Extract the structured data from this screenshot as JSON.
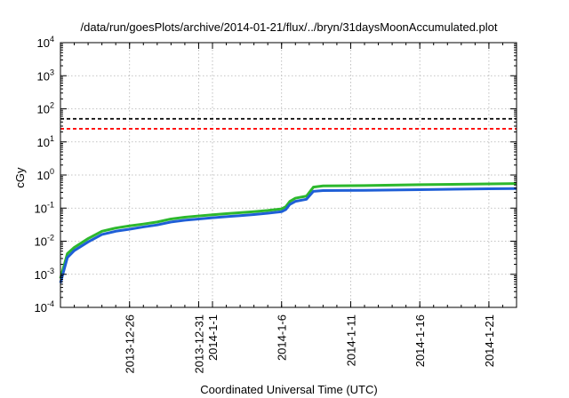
{
  "chart_data": {
    "type": "line",
    "title": "/data/run/goesPlots/archive/2014-01-21/flux/../bryn/31daysMoonAccumulated.plot",
    "xlabel": "Coordinated Universal Time (UTC)",
    "ylabel": "cGy",
    "yscale": "log",
    "ylim": [
      0.0001,
      10000
    ],
    "xlim": [
      "2013-12-21",
      "2014-01-23"
    ],
    "grid": true,
    "y_ticks": [
      {
        "base": "10",
        "exp": "-4",
        "value": 0.0001
      },
      {
        "base": "10",
        "exp": "-3",
        "value": 0.001
      },
      {
        "base": "10",
        "exp": "-2",
        "value": 0.01
      },
      {
        "base": "10",
        "exp": "-1",
        "value": 0.1
      },
      {
        "base": "10",
        "exp": "0",
        "value": 1
      },
      {
        "base": "10",
        "exp": "1",
        "value": 10
      },
      {
        "base": "10",
        "exp": "2",
        "value": 100
      },
      {
        "base": "10",
        "exp": "3",
        "value": 1000
      },
      {
        "base": "10",
        "exp": "4",
        "value": 10000
      }
    ],
    "x_ticks": [
      {
        "label": "2013-12-26",
        "date": "2013-12-26"
      },
      {
        "label": "2013-12-31",
        "date": "2013-12-31"
      },
      {
        "label": "2014-1-1",
        "date": "2014-01-01"
      },
      {
        "label": "2014-1-6",
        "date": "2014-01-06"
      },
      {
        "label": "2014-1-11",
        "date": "2014-01-11"
      },
      {
        "label": "2014-1-16",
        "date": "2014-01-16"
      },
      {
        "label": "2014-1-21",
        "date": "2014-01-21"
      }
    ],
    "reference_lines": [
      {
        "value": 50,
        "color": "#000000",
        "style": "dashed"
      },
      {
        "value": 25,
        "color": "#ff0000",
        "style": "dashed"
      }
    ],
    "series": [
      {
        "color": "#2db82d",
        "points": [
          [
            "2013-12-21",
            0.00075
          ],
          [
            "2013-12-21.5",
            0.0042
          ],
          [
            "2013-12-22",
            0.0065
          ],
          [
            "2013-12-23",
            0.012
          ],
          [
            "2013-12-24",
            0.02
          ],
          [
            "2013-12-25",
            0.025
          ],
          [
            "2013-12-26",
            0.029
          ],
          [
            "2013-12-27",
            0.033
          ],
          [
            "2013-12-28",
            0.038
          ],
          [
            "2013-12-29",
            0.047
          ],
          [
            "2013-12-30",
            0.053
          ],
          [
            "2013-12-31",
            0.058
          ],
          [
            "2014-01-01",
            0.063
          ],
          [
            "2014-01-02",
            0.068
          ],
          [
            "2014-01-03",
            0.073
          ],
          [
            "2014-01-04",
            0.078
          ],
          [
            "2014-01-05",
            0.085
          ],
          [
            "2014-01-06",
            0.095
          ],
          [
            "2014-01-06.3",
            0.11
          ],
          [
            "2014-01-06.6",
            0.16
          ],
          [
            "2014-01-07",
            0.2
          ],
          [
            "2014-01-07.8",
            0.23
          ],
          [
            "2014-01-08.3",
            0.43
          ],
          [
            "2014-01-09",
            0.47
          ],
          [
            "2014-01-12",
            0.48
          ],
          [
            "2014-01-16",
            0.51
          ],
          [
            "2014-01-21",
            0.54
          ],
          [
            "2014-01-23",
            0.55
          ]
        ]
      },
      {
        "color": "#1f5fd6",
        "points": [
          [
            "2013-12-21",
            0.00055
          ],
          [
            "2013-12-21.5",
            0.0032
          ],
          [
            "2013-12-22",
            0.0052
          ],
          [
            "2013-12-23",
            0.0095
          ],
          [
            "2013-12-24",
            0.016
          ],
          [
            "2013-12-25",
            0.02
          ],
          [
            "2013-12-26",
            0.023
          ],
          [
            "2013-12-27",
            0.027
          ],
          [
            "2013-12-28",
            0.031
          ],
          [
            "2013-12-29",
            0.038
          ],
          [
            "2013-12-30",
            0.043
          ],
          [
            "2013-12-31",
            0.047
          ],
          [
            "2014-01-01",
            0.051
          ],
          [
            "2014-01-02",
            0.055
          ],
          [
            "2014-01-03",
            0.059
          ],
          [
            "2014-01-04",
            0.064
          ],
          [
            "2014-01-05",
            0.07
          ],
          [
            "2014-01-06",
            0.078
          ],
          [
            "2014-01-06.3",
            0.09
          ],
          [
            "2014-01-06.6",
            0.13
          ],
          [
            "2014-01-07",
            0.16
          ],
          [
            "2014-01-07.8",
            0.185
          ],
          [
            "2014-01-08.3",
            0.32
          ],
          [
            "2014-01-09",
            0.34
          ],
          [
            "2014-01-12",
            0.345
          ],
          [
            "2014-01-16",
            0.36
          ],
          [
            "2014-01-21",
            0.385
          ],
          [
            "2014-01-23",
            0.39
          ]
        ]
      }
    ]
  }
}
